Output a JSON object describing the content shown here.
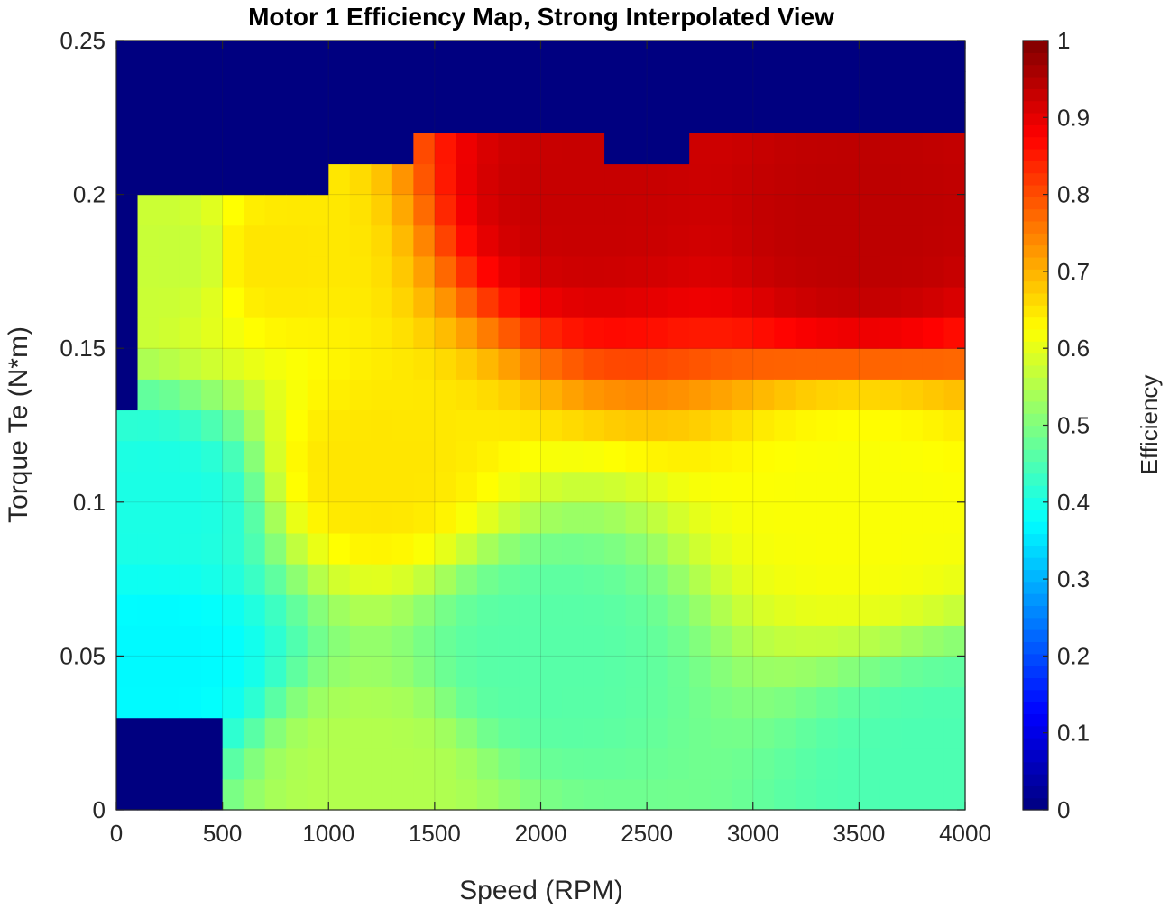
{
  "chart_data": {
    "type": "heatmap",
    "title": "Motor 1 Efficiency Map, Strong Interpolated View",
    "xlabel": "Speed (RPM)",
    "ylabel": "Torque Te (N*m)",
    "colorbar_label": "Efficiency",
    "colormap": "jet",
    "xlim": [
      0,
      4000
    ],
    "ylim": [
      0,
      0.25
    ],
    "clim": [
      0,
      1
    ],
    "grid": true,
    "x_ticks": [
      "0",
      "500",
      "1000",
      "1500",
      "2000",
      "2500",
      "3000",
      "3500",
      "4000"
    ],
    "y_ticks": [
      "0",
      "0.05",
      "0.1",
      "0.15",
      "0.2",
      "0.25"
    ],
    "colorbar_ticks": [
      "0",
      "0.1",
      "0.2",
      "0.3",
      "0.4",
      "0.5",
      "0.6",
      "0.7",
      "0.8",
      "0.9",
      "1"
    ],
    "x_bin_width": 100,
    "y_bin_width": 0.01,
    "max_torque_by_speed": [
      {
        "speed_from": 0,
        "speed_to": 100,
        "max_torque": 0.13
      },
      {
        "speed_from": 100,
        "speed_to": 1000,
        "max_torque": 0.2
      },
      {
        "speed_from": 1000,
        "speed_to": 1400,
        "max_torque": 0.21
      },
      {
        "speed_from": 1400,
        "speed_to": 2300,
        "max_torque": 0.22
      },
      {
        "speed_from": 2300,
        "speed_to": 2700,
        "max_torque": 0.21
      },
      {
        "speed_from": 2700,
        "speed_to": 4000,
        "max_torque": 0.22
      }
    ],
    "zero_region": [
      {
        "speed_from": 0,
        "speed_to": 500,
        "torque_from": 0,
        "torque_to": 0.03
      }
    ],
    "efficiency_samples": [
      {
        "speed": 200,
        "torque": 0.05,
        "efficiency": 0.37
      },
      {
        "speed": 200,
        "torque": 0.1,
        "efficiency": 0.4
      },
      {
        "speed": 300,
        "torque": 0.18,
        "efficiency": 0.57
      },
      {
        "speed": 700,
        "torque": 0.18,
        "efficiency": 0.65
      },
      {
        "speed": 1200,
        "torque": 0.01,
        "efficiency": 0.55
      },
      {
        "speed": 1200,
        "torque": 0.11,
        "efficiency": 0.65
      },
      {
        "speed": 2000,
        "torque": 0.05,
        "efficiency": 0.46
      },
      {
        "speed": 2200,
        "torque": 0.2,
        "efficiency": 0.93
      },
      {
        "speed": 3500,
        "torque": 0.19,
        "efficiency": 0.94
      },
      {
        "speed": 3500,
        "torque": 0.1,
        "efficiency": 0.62
      },
      {
        "speed": 3900,
        "torque": 0.01,
        "efficiency": 0.45
      }
    ]
  }
}
